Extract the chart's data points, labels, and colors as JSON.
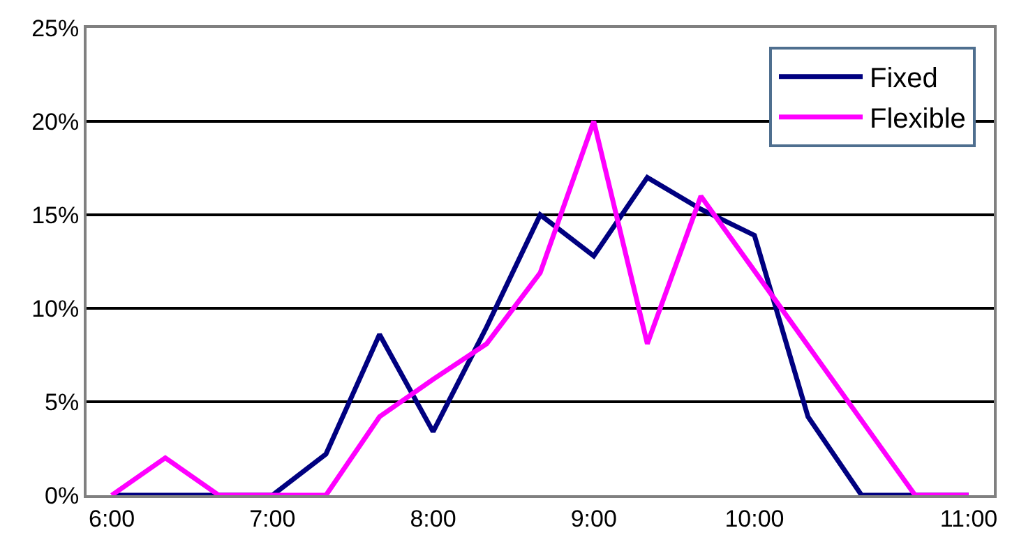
{
  "chart_data": {
    "type": "line",
    "categories": [
      "6:00",
      null,
      null,
      "7:00",
      null,
      null,
      "8:00",
      null,
      null,
      "9:00",
      null,
      null,
      "10:00",
      null,
      null,
      null,
      "11:00"
    ],
    "series": [
      {
        "name": "Fixed",
        "color": "#000080",
        "values": [
          0,
          0,
          0,
          0,
          2.2,
          8.6,
          3.4,
          9,
          15,
          12.8,
          17,
          15.3,
          13.9,
          4.2,
          0,
          0,
          0
        ]
      },
      {
        "name": "Flexible",
        "color": "#ff00ff",
        "values": [
          0,
          2,
          0,
          0,
          0,
          4.2,
          6.2,
          8.1,
          11.9,
          20,
          8.1,
          16,
          12,
          8,
          4,
          0,
          0
        ]
      }
    ],
    "ylim": [
      0,
      25
    ],
    "yticks": [
      {
        "value": 0,
        "label": "0%"
      },
      {
        "value": 5,
        "label": "5%"
      },
      {
        "value": 10,
        "label": "10%"
      },
      {
        "value": 15,
        "label": "15%"
      },
      {
        "value": 20,
        "label": "20%"
      },
      {
        "value": 25,
        "label": "25%"
      }
    ],
    "grid": "y",
    "legend": "top right",
    "marker": "none",
    "line_style": "solid"
  }
}
